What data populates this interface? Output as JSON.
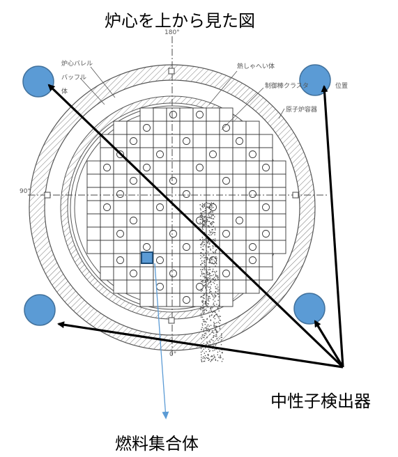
{
  "title": "炉心を上から見た図",
  "labels": {
    "neutron_detector": "中性子検出器",
    "fuel_assembly": "燃料集合体"
  },
  "annotations": [
    "炉心バレル",
    "バッフル",
    "体",
    "熱しゃへい体",
    "制御棒クラスタ",
    "位置",
    "原子炉容器",
    "0°",
    "90°",
    "180°"
  ],
  "colors": {
    "detector_fill": "#5b9bd5",
    "detector_stroke": "#41719c",
    "arrow": "#000000",
    "fuel_line": "#5b9bd5"
  }
}
